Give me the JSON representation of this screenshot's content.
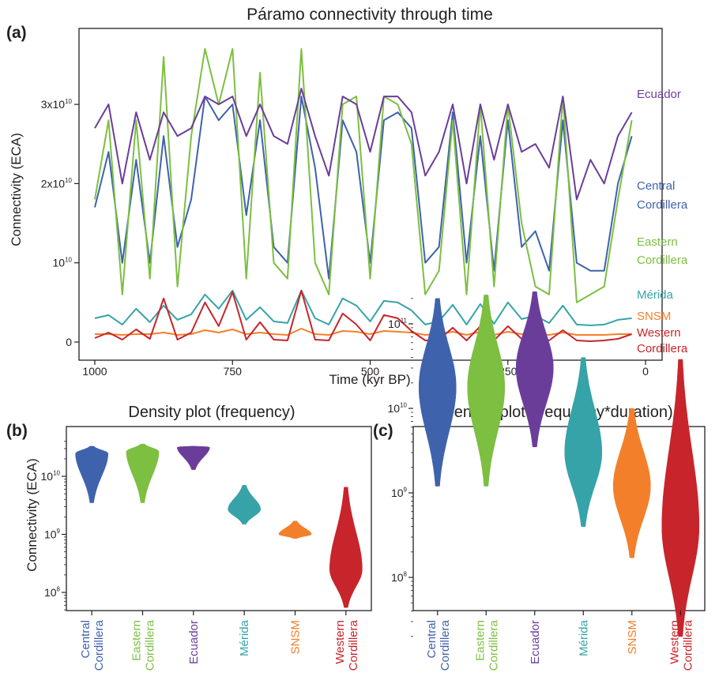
{
  "colors": {
    "Central Cordillera": "#3f62ad",
    "Eastern Cordillera": "#7cbf41",
    "Ecuador": "#6b3d9a",
    "Mérida": "#36a3a9",
    "SNSM": "#f47f2a",
    "Western Cordillera": "#c7252b"
  },
  "chart_data": [
    {
      "type": "line",
      "panel_label": "(a)",
      "title": "Páramo connectivity through time",
      "xlabel": "Time (kyr BP)",
      "ylabel": "Connectivity (ECA)",
      "x_reversed": true,
      "xlim": [
        1000,
        0
      ],
      "ylim": [
        0,
        37000000000
      ],
      "x_ticks": [
        1000,
        750,
        500,
        250,
        0
      ],
      "x_tick_labels": [
        "1000",
        "750",
        "500",
        "250",
        "0"
      ],
      "y_ticks": [
        0,
        10000000000,
        20000000000,
        30000000000
      ],
      "y_tick_labels": [
        {
          "base": "0",
          "exp": ""
        },
        {
          "base": "10",
          "exp": "10"
        },
        {
          "base": "2x10",
          "exp": "10"
        },
        {
          "base": "3x10",
          "exp": "10"
        }
      ],
      "x": [
        1000,
        975,
        950,
        925,
        900,
        875,
        850,
        825,
        800,
        775,
        750,
        725,
        700,
        675,
        650,
        625,
        600,
        575,
        550,
        525,
        500,
        475,
        450,
        425,
        400,
        375,
        350,
        325,
        300,
        275,
        250,
        225,
        200,
        175,
        150,
        125,
        100,
        75,
        50,
        25
      ],
      "series": [
        {
          "name": "Central Cordillera",
          "label_lines": [
            "Central",
            "Cordillera"
          ],
          "values": [
            17000000000.0,
            24000000000.0,
            10000000000.0,
            23000000000.0,
            10000000000.0,
            26000000000.0,
            12000000000.0,
            18000000000.0,
            31000000000.0,
            28000000000.0,
            30000000000.0,
            16000000000.0,
            28000000000.0,
            12000000000.0,
            10000000000.0,
            31000000000.0,
            22000000000.0,
            8000000000.0,
            28000000000.0,
            24000000000.0,
            10000000000.0,
            28000000000.0,
            29000000000.0,
            27000000000.0,
            10000000000.0,
            12000000000.0,
            29000000000.0,
            10000000000.0,
            26000000000.0,
            9000000000.0,
            28000000000.0,
            12000000000.0,
            14000000000.0,
            9000000000.0,
            28000000000.0,
            10000000000.0,
            9000000000.0,
            9000000000.0,
            20000000000.0,
            26000000000.0
          ]
        },
        {
          "name": "Eastern Cordillera",
          "label_lines": [
            "Eastern",
            "Cordillera"
          ],
          "values": [
            18000000000.0,
            28000000000.0,
            6000000000.0,
            28000000000.0,
            8000000000.0,
            36000000000.0,
            7000000000.0,
            26000000000.0,
            37000000000.0,
            30000000000.0,
            37000000000.0,
            8000000000.0,
            34000000000.0,
            10000000000.0,
            8000000000.0,
            37000000000.0,
            10000000000.0,
            6000000000.0,
            30000000000.0,
            31000000000.0,
            8000000000.0,
            31000000000.0,
            30000000000.0,
            25000000000.0,
            6000000000.0,
            9000000000.0,
            28000000000.0,
            6000000000.0,
            30000000000.0,
            7000000000.0,
            30000000000.0,
            15000000000.0,
            7000000000.0,
            6000000000.0,
            31000000000.0,
            5000000000.0,
            6000000000.0,
            7000000000.0,
            18000000000.0,
            28000000000.0
          ]
        },
        {
          "name": "Ecuador",
          "label_lines": [
            "Ecuador"
          ],
          "values": [
            27000000000.0,
            30000000000.0,
            20000000000.0,
            29000000000.0,
            23000000000.0,
            29000000000.0,
            26000000000.0,
            27000000000.0,
            31000000000.0,
            30000000000.0,
            31000000000.0,
            26000000000.0,
            30000000000.0,
            26000000000.0,
            25000000000.0,
            32000000000.0,
            26000000000.0,
            21000000000.0,
            31000000000.0,
            30000000000.0,
            24000000000.0,
            31000000000.0,
            31000000000.0,
            29000000000.0,
            21000000000.0,
            24000000000.0,
            30000000000.0,
            20000000000.0,
            30000000000.0,
            23000000000.0,
            30000000000.0,
            24000000000.0,
            25000000000.0,
            22000000000.0,
            31000000000.0,
            18000000000.0,
            23000000000.0,
            20000000000.0,
            26000000000.0,
            29000000000.0
          ]
        },
        {
          "name": "Mérida",
          "label_lines": [
            "Mérida"
          ],
          "values": [
            3000000000.0,
            3400000000.0,
            2200000000.0,
            4200000000.0,
            2500000000.0,
            4600000000.0,
            2800000000.0,
            3500000000.0,
            6000000000.0,
            4200000000.0,
            6500000000.0,
            2800000000.0,
            4400000000.0,
            2600000000.0,
            2400000000.0,
            6500000000.0,
            3000000000.0,
            2200000000.0,
            5500000000.0,
            4600000000.0,
            2600000000.0,
            5200000000.0,
            5000000000.0,
            4000000000.0,
            2200000000.0,
            2600000000.0,
            4700000000.0,
            2200000000.0,
            4800000000.0,
            2300000000.0,
            5000000000.0,
            2900000000.0,
            3300000000.0,
            2400000000.0,
            4600000000.0,
            2200000000.0,
            2100000000.0,
            2200000000.0,
            2800000000.0,
            3000000000.0
          ]
        },
        {
          "name": "SNSM",
          "label_lines": [
            "SNSM"
          ],
          "values": [
            1000000000.0,
            1000000000.0,
            900000000.0,
            1000000000.0,
            1000000000.0,
            1200000000.0,
            900000000.0,
            1000000000.0,
            1500000000.0,
            1200000000.0,
            1600000000.0,
            1000000000.0,
            1200000000.0,
            1000000000.0,
            900000000.0,
            1700000000.0,
            1000000000.0,
            900000000.0,
            1400000000.0,
            1300000000.0,
            1000000000.0,
            1400000000.0,
            1300000000.0,
            1200000000.0,
            900000000.0,
            1000000000.0,
            1300000000.0,
            900000000.0,
            1300000000.0,
            900000000.0,
            1300000000.0,
            1000000000.0,
            1000000000.0,
            900000000.0,
            1200000000.0,
            900000000.0,
            900000000.0,
            900000000.0,
            1000000000.0,
            1000000000.0
          ]
        },
        {
          "name": "Western Cordillera",
          "label_lines": [
            "Western",
            "Cordillera"
          ],
          "values": [
            500000000.0,
            1200000000.0,
            300000000.0,
            1600000000.0,
            400000000.0,
            5500000000.0,
            300000000.0,
            1200000000.0,
            5000000000.0,
            2000000000.0,
            6300000000.0,
            300000000.0,
            2500000000.0,
            300000000.0,
            200000000.0,
            6500000000.0,
            300000000.0,
            200000000.0,
            3600000000.0,
            2200000000.0,
            200000000.0,
            3400000000.0,
            3000000000.0,
            1400000000.0,
            200000000.0,
            300000000.0,
            1800000000.0,
            200000000.0,
            2000000000.0,
            200000000.0,
            2000000000.0,
            400000000.0,
            800000000.0,
            200000000.0,
            1500000000.0,
            200000000.0,
            100000000.0,
            200000000.0,
            400000000.0,
            1000000000.0
          ]
        }
      ]
    },
    {
      "type": "violin",
      "panel_label": "(b)",
      "title": "Density plot (frequency)",
      "ylabel": "Connectivity (ECA)",
      "y_scale": "log",
      "ylim": [
        50000000,
        40000000000
      ],
      "y_ticks": [
        100000000,
        1000000000,
        10000000000
      ],
      "y_tick_labels": [
        {
          "base": "10",
          "exp": "8"
        },
        {
          "base": "10",
          "exp": "9"
        },
        {
          "base": "10",
          "exp": "10"
        }
      ],
      "categories": [
        "Central Cordillera",
        "Eastern Cordillera",
        "Ecuador",
        "Mérida",
        "SNSM",
        "Western Cordillera"
      ],
      "category_labels": [
        [
          "Central",
          "Cordillera"
        ],
        [
          "Eastern",
          "Cordillera"
        ],
        [
          "Ecuador"
        ],
        [
          "Mérida"
        ],
        [
          "SNSM"
        ],
        [
          "Western",
          "Cordillera"
        ]
      ],
      "range": [
        [
          3500000000.0,
          33000000000.0
        ],
        [
          3500000000.0,
          36000000000.0
        ],
        [
          13000000000.0,
          33000000000.0
        ],
        [
          1500000000.0,
          7000000000.0
        ],
        [
          850000000.0,
          1700000000.0
        ],
        [
          55000000.0,
          6500000000.0
        ]
      ],
      "mode": [
        25000000000.0,
        27000000000.0,
        32000000000.0,
        2700000000.0,
        1000000000.0,
        250000000.0
      ]
    },
    {
      "type": "violin",
      "panel_label": "(c)",
      "title": "Density plot (frequency*duration)",
      "y_scale": "log",
      "ylim": [
        20000000,
        250000000000
      ],
      "y_ticks": [
        100000000,
        1000000000,
        10000000000,
        100000000000
      ],
      "y_tick_labels": [
        {
          "base": "10",
          "exp": "8"
        },
        {
          "base": "10",
          "exp": "9"
        },
        {
          "base": "10",
          "exp": "10"
        },
        {
          "base": "10",
          "exp": "11"
        }
      ],
      "categories": [
        "Central Cordillera",
        "Eastern Cordillera",
        "Ecuador",
        "Mérida",
        "SNSM",
        "Western Cordillera"
      ],
      "category_labels": [
        [
          "Central",
          "Cordillera"
        ],
        [
          "Eastern",
          "Cordillera"
        ],
        [
          "Ecuador"
        ],
        [
          "Mérida"
        ],
        [
          "SNSM"
        ],
        [
          "Western",
          "Cordillera"
        ]
      ],
      "range": [
        [
          1200000000.0,
          200000000000.0
        ],
        [
          1200000000.0,
          220000000000.0
        ],
        [
          3500000000.0,
          240000000000.0
        ],
        [
          400000000.0,
          40000000000.0
        ],
        [
          170000000.0,
          10000000000.0
        ],
        [
          20000000.0,
          38000000000.0
        ]
      ],
      "mode": [
        18000000000.0,
        18000000000.0,
        30000000000.0,
        3000000000.0,
        1200000000.0,
        400000000.0
      ]
    }
  ]
}
